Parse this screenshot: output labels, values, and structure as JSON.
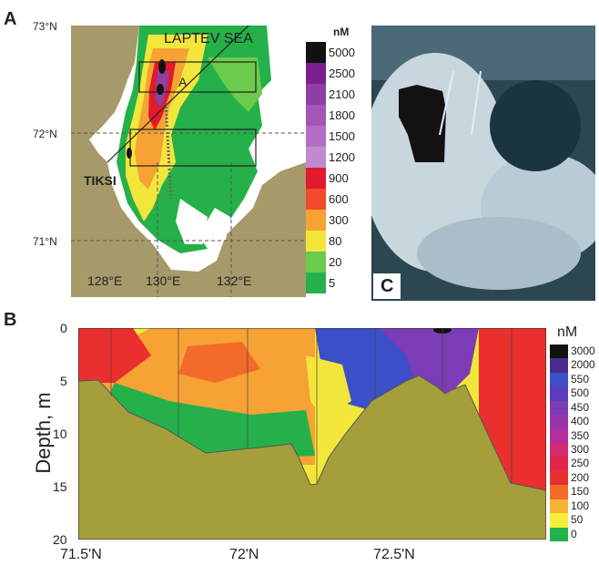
{
  "panels": {
    "a": {
      "letter": "A",
      "lat_labels": [
        "73°N",
        "72°N",
        "71°N"
      ],
      "lon_labels": [
        "128°E",
        "130°E",
        "132°E"
      ],
      "sea_label": "LAPTEV SEA",
      "box_label": "A",
      "city_label": "TIKSI",
      "legend_unit": "nM",
      "legend_values": [
        "5000",
        "2500",
        "2100",
        "1800",
        "1500",
        "1200",
        "900",
        "600",
        "300",
        "80",
        "20",
        "5"
      ],
      "legend_colors": [
        "#111111",
        "#7a1f8f",
        "#8e3fa3",
        "#a455b6",
        "#b46ec6",
        "#c08ad1",
        "#e01a2a",
        "#f24a2a",
        "#f7a234",
        "#f3e63a",
        "#6ccb4c",
        "#25b04a"
      ]
    },
    "b": {
      "letter": "B",
      "ylabel": "Depth, m",
      "y_ticks": [
        "0",
        "5",
        "10",
        "15",
        "20"
      ],
      "x_ticks": [
        "71.5'N",
        "72'N",
        "72.5'N"
      ],
      "legend_unit": "nM",
      "legend_values": [
        "3000",
        "2000",
        "550",
        "500",
        "450",
        "400",
        "350",
        "300",
        "250",
        "200",
        "150",
        "100",
        "50",
        "0"
      ],
      "legend_colors": [
        "#111111",
        "#4a2a8f",
        "#3b4fc8",
        "#5b3dbd",
        "#7b3cb6",
        "#9a36ac",
        "#b32f9d",
        "#d02b73",
        "#e2264a",
        "#ea2f2f",
        "#f36b2b",
        "#f8b232",
        "#f4ee3a",
        "#1fb34a"
      ]
    },
    "c": {
      "letter": "C"
    }
  }
}
